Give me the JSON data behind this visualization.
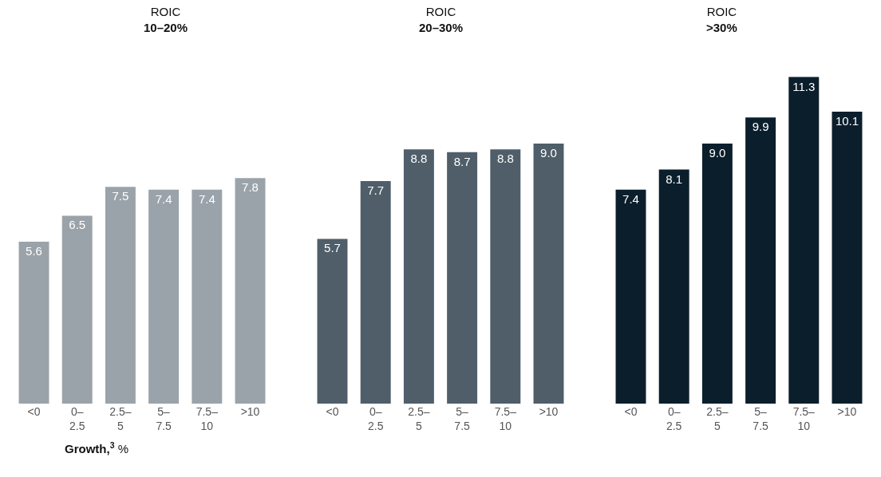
{
  "chart_data": [
    {
      "type": "bar",
      "title": "ROIC",
      "subtitle": "10–20%",
      "xlabel": "Growth,$^{3}$ %",
      "categories": [
        "<0",
        "0–\n2.5",
        "2.5–\n5",
        "5–\n7.5",
        "7.5–\n10",
        ">10"
      ],
      "values": [
        5.6,
        6.5,
        7.5,
        7.4,
        7.4,
        7.8
      ],
      "value_labels": [
        "5.6",
        "6.5",
        "7.5",
        "7.4",
        "7.4",
        "7.8"
      ],
      "color": "#9ba3aa",
      "tick_labels": "x"
    },
    {
      "type": "bar",
      "title": "ROIC",
      "subtitle": "20–30%",
      "categories": [
        "<0",
        "0–\n2.5",
        "2.5–\n5",
        "5–\n7.5",
        "7.5–\n10",
        ">10"
      ],
      "values": [
        5.7,
        7.7,
        8.8,
        8.7,
        8.8,
        9.0
      ],
      "value_labels": [
        "5.7",
        "7.7",
        "8.8",
        "8.7",
        "8.8",
        "9.0"
      ],
      "color": "#4f5e69",
      "tick_labels": "x"
    },
    {
      "type": "bar",
      "title": "ROIC",
      "subtitle": ">30%",
      "categories": [
        "<0",
        "0–\n2.5",
        "2.5–\n5",
        "5–\n7.5",
        "7.5–\n10",
        ">10"
      ],
      "values": [
        7.4,
        8.1,
        9.0,
        9.9,
        11.3,
        10.1
      ],
      "value_labels": [
        "7.4",
        "8.1",
        "9.0",
        "9.9",
        "11.3",
        "10.1"
      ],
      "color": "#0b1e2c",
      "tick_labels": "x"
    }
  ]
}
